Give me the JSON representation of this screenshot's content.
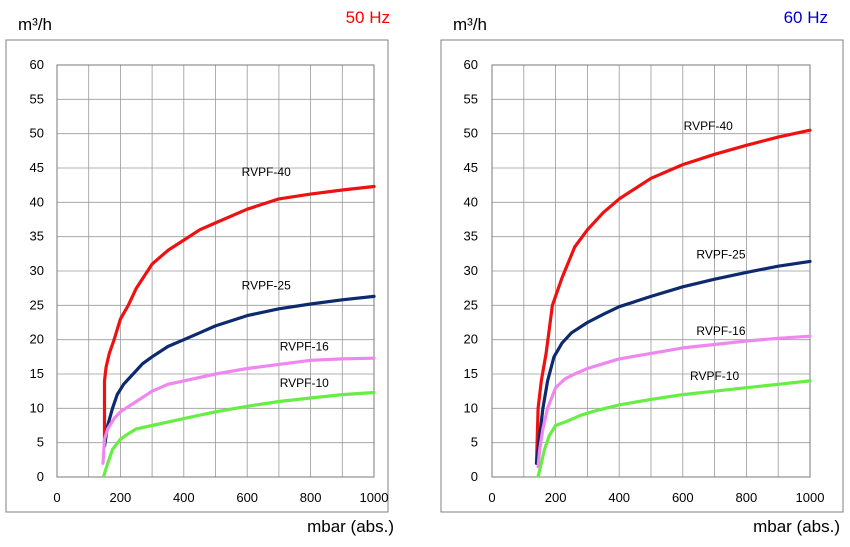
{
  "chart_data": [
    {
      "type": "line",
      "title": "50 Hz",
      "title_color": "#ff0000",
      "ylabel": "m³/h",
      "xlabel": "mbar (abs.)",
      "xlim": [
        0,
        1000
      ],
      "ylim": [
        0,
        60
      ],
      "xticks": [
        0,
        200,
        400,
        600,
        800,
        1000
      ],
      "yticks": [
        0,
        5,
        10,
        15,
        20,
        25,
        30,
        35,
        40,
        45,
        50,
        55,
        60
      ],
      "grid": true,
      "series": [
        {
          "name": "RVPF-40",
          "color": "#ee1111",
          "x": [
            150,
            150,
            155,
            165,
            180,
            200,
            225,
            250,
            300,
            350,
            400,
            450,
            500,
            600,
            700,
            800,
            900,
            1000
          ],
          "y": [
            5,
            14,
            16,
            18,
            20,
            23,
            25,
            27.5,
            31,
            33,
            34.5,
            36,
            37,
            39,
            40.5,
            41.2,
            41.8,
            42.3
          ]
        },
        {
          "name": "RVPF-25",
          "color": "#0d2a6e",
          "x": [
            150,
            160,
            175,
            190,
            210,
            240,
            270,
            300,
            350,
            400,
            450,
            500,
            600,
            700,
            800,
            900,
            1000
          ],
          "y": [
            4.5,
            7.5,
            10,
            12,
            13.5,
            15,
            16.5,
            17.5,
            19,
            20,
            21,
            22,
            23.5,
            24.5,
            25.2,
            25.8,
            26.3
          ],
          "label_x": 300,
          "label_y": 26.5
        },
        {
          "name": "RVPF-16",
          "color": "#ee88ee",
          "x": [
            145,
            150,
            160,
            180,
            200,
            250,
            300,
            350,
            400,
            500,
            600,
            700,
            800,
            900,
            1000
          ],
          "y": [
            2,
            5.5,
            7,
            8.5,
            9.5,
            11,
            12.5,
            13.5,
            14,
            15,
            15.8,
            16.4,
            17,
            17.2,
            17.3
          ]
        },
        {
          "name": "RVPF-10",
          "color": "#66ee44",
          "x": [
            148,
            150,
            160,
            175,
            200,
            225,
            250,
            300,
            350,
            400,
            500,
            600,
            700,
            800,
            900,
            1000
          ],
          "y": [
            0.2,
            0.5,
            2,
            4,
            5.5,
            6.3,
            7,
            7.5,
            8,
            8.5,
            9.5,
            10.3,
            11,
            11.5,
            12,
            12.3
          ]
        }
      ],
      "labels": [
        {
          "text": "RVPF-40",
          "x": 660,
          "y": 43.8
        },
        {
          "text": "RVPF-25",
          "x": 660,
          "y": 27.3
        },
        {
          "text": "RVPF-16",
          "x": 780,
          "y": 18.4
        },
        {
          "text": "RVPF-10",
          "x": 780,
          "y": 13.1
        }
      ]
    },
    {
      "type": "line",
      "title": "60 Hz",
      "title_color": "#0000cc",
      "ylabel": "m³/h",
      "xlabel": "mbar (abs.)",
      "xlim": [
        0,
        1000
      ],
      "ylim": [
        0,
        60
      ],
      "xticks": [
        0,
        200,
        400,
        600,
        800,
        1000
      ],
      "yticks": [
        0,
        5,
        10,
        15,
        20,
        25,
        30,
        35,
        40,
        45,
        50,
        55,
        60
      ],
      "grid": true,
      "series": [
        {
          "name": "RVPF-40",
          "color": "#ee1111",
          "x": [
            140,
            145,
            155,
            170,
            190,
            220,
            260,
            300,
            350,
            400,
            500,
            600,
            700,
            800,
            900,
            1000
          ],
          "y": [
            2,
            10,
            14,
            18,
            25,
            29,
            33.5,
            36,
            38.5,
            40.5,
            43.5,
            45.5,
            47,
            48.3,
            49.5,
            50.5
          ]
        },
        {
          "name": "RVPF-25",
          "color": "#0d2a6e",
          "x": [
            140,
            150,
            160,
            175,
            195,
            220,
            250,
            300,
            350,
            400,
            500,
            600,
            700,
            800,
            900,
            1000
          ],
          "y": [
            2,
            6,
            10,
            14,
            17.5,
            19.5,
            21,
            22.5,
            23.7,
            24.8,
            26.3,
            27.7,
            28.8,
            29.8,
            30.7,
            31.4
          ]
        },
        {
          "name": "RVPF-16",
          "color": "#ee88ee",
          "x": [
            145,
            150,
            160,
            175,
            200,
            230,
            260,
            300,
            350,
            400,
            500,
            600,
            700,
            800,
            900,
            1000
          ],
          "y": [
            1.5,
            4,
            7,
            10,
            13,
            14.3,
            15,
            15.8,
            16.5,
            17.2,
            18,
            18.8,
            19.3,
            19.8,
            20.2,
            20.5
          ]
        },
        {
          "name": "RVPF-10",
          "color": "#66ee44",
          "x": [
            145,
            150,
            165,
            180,
            200,
            240,
            280,
            330,
            400,
            500,
            600,
            700,
            800,
            900,
            1000
          ],
          "y": [
            0.1,
            1,
            4,
            6,
            7.5,
            8.2,
            9,
            9.7,
            10.5,
            11.3,
            12,
            12.5,
            13,
            13.5,
            14
          ]
        }
      ],
      "labels": [
        {
          "text": "RVPF-40",
          "x": 680,
          "y": 50.5
        },
        {
          "text": "RVPF-25",
          "x": 720,
          "y": 31.8
        },
        {
          "text": "RVPF-16",
          "x": 720,
          "y": 20.7
        },
        {
          "text": "RVPF-10",
          "x": 700,
          "y": 14.1
        }
      ]
    }
  ]
}
